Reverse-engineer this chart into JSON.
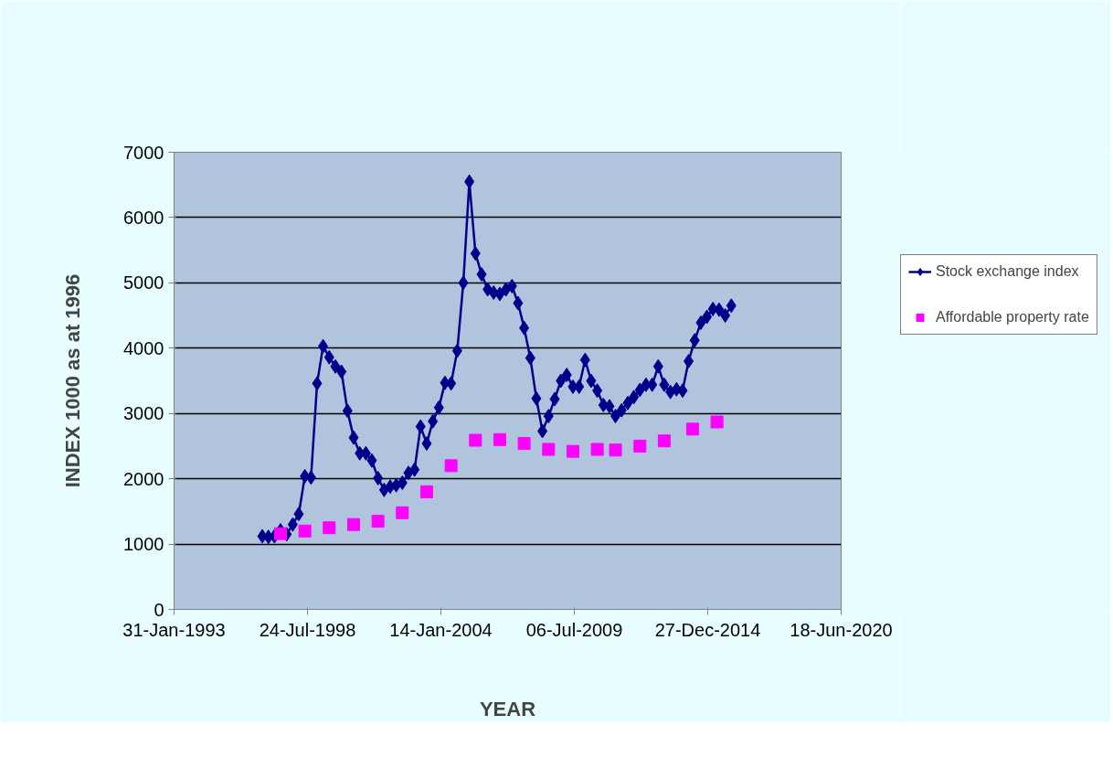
{
  "chart_data": {
    "type": "line",
    "xlabel": "YEAR",
    "ylabel": "INDEX 1000 as at 1996",
    "xlim": [
      "1993-01-31",
      "2020-06-18"
    ],
    "xticks": [
      {
        "value": "1993-01-31",
        "label": "31-Jan-1993"
      },
      {
        "value": "1998-07-24",
        "label": "24-Jul-1998"
      },
      {
        "value": "2004-01-14",
        "label": "14-Jan-2004"
      },
      {
        "value": "2009-07-06",
        "label": "06-Jul-2009"
      },
      {
        "value": "2014-12-27",
        "label": "27-Dec-2014"
      },
      {
        "value": "2020-06-18",
        "label": "18-Jun-2020"
      }
    ],
    "ylim": [
      0,
      7000
    ],
    "yticks": [
      0,
      1000,
      2000,
      3000,
      4000,
      5000,
      6000,
      7000
    ],
    "grid": "y",
    "legend": "right",
    "series": [
      {
        "name": "Stock exchange index",
        "marker": "diamond",
        "color": "#00008b",
        "x": [
          "1996-09",
          "1996-12",
          "1997-03",
          "1997-06",
          "1997-09",
          "1997-12",
          "1998-03",
          "1998-06",
          "1998-09",
          "1998-12",
          "1999-03",
          "1999-06",
          "1999-09",
          "1999-12",
          "2000-03",
          "2000-06",
          "2000-09",
          "2000-12",
          "2001-03",
          "2001-06",
          "2001-09",
          "2001-12",
          "2002-03",
          "2002-06",
          "2002-09",
          "2002-12",
          "2003-03",
          "2003-06",
          "2003-09",
          "2003-12",
          "2004-03",
          "2004-06",
          "2004-09",
          "2004-12",
          "2005-03",
          "2005-06",
          "2005-09",
          "2005-12",
          "2006-03",
          "2006-06",
          "2006-09",
          "2006-12",
          "2007-03",
          "2007-06",
          "2007-09",
          "2007-12",
          "2008-03",
          "2008-06",
          "2008-09",
          "2008-12",
          "2009-03",
          "2009-06",
          "2009-09",
          "2009-12",
          "2010-03",
          "2010-06",
          "2010-09",
          "2010-12",
          "2011-03",
          "2011-06",
          "2011-09",
          "2011-12",
          "2012-03",
          "2012-06",
          "2012-09",
          "2012-12",
          "2013-03",
          "2013-06",
          "2013-09",
          "2013-12",
          "2014-03",
          "2014-06",
          "2014-09",
          "2014-12",
          "2015-03",
          "2015-06",
          "2015-09",
          "2015-12"
        ],
        "values": [
          1120,
          1110,
          1120,
          1210,
          1150,
          1300,
          1460,
          2040,
          2020,
          3460,
          4030,
          3860,
          3720,
          3640,
          3040,
          2630,
          2390,
          2390,
          2280,
          2010,
          1830,
          1880,
          1900,
          1940,
          2090,
          2140,
          2800,
          2540,
          2880,
          3090,
          3470,
          3460,
          3960,
          5000,
          6550,
          5450,
          5130,
          4900,
          4850,
          4830,
          4900,
          4950,
          4690,
          4310,
          3850,
          3230,
          2730,
          2960,
          3220,
          3500,
          3590,
          3410,
          3410,
          3820,
          3500,
          3350,
          3130,
          3110,
          2960,
          3050,
          3160,
          3250,
          3360,
          3440,
          3440,
          3720,
          3440,
          3330,
          3370,
          3350,
          3800,
          4120,
          4390,
          4480,
          4600,
          4590,
          4500,
          4650
        ]
      },
      {
        "name": "Affordable property rate",
        "type": "scatter",
        "marker": "square",
        "color": "#ff00ff",
        "x": [
          "1997-06",
          "1998-06",
          "1999-06",
          "2000-06",
          "2001-06",
          "2002-06",
          "2003-06",
          "2004-06",
          "2005-06",
          "2006-06",
          "2007-06",
          "2008-06",
          "2009-06",
          "2010-06",
          "2011-03",
          "2012-03",
          "2013-03",
          "2014-05",
          "2015-05"
        ],
        "values": [
          1160,
          1200,
          1250,
          1300,
          1350,
          1480,
          1800,
          2200,
          2590,
          2600,
          2540,
          2450,
          2420,
          2450,
          2440,
          2500,
          2580,
          2760,
          2870
        ]
      }
    ]
  }
}
